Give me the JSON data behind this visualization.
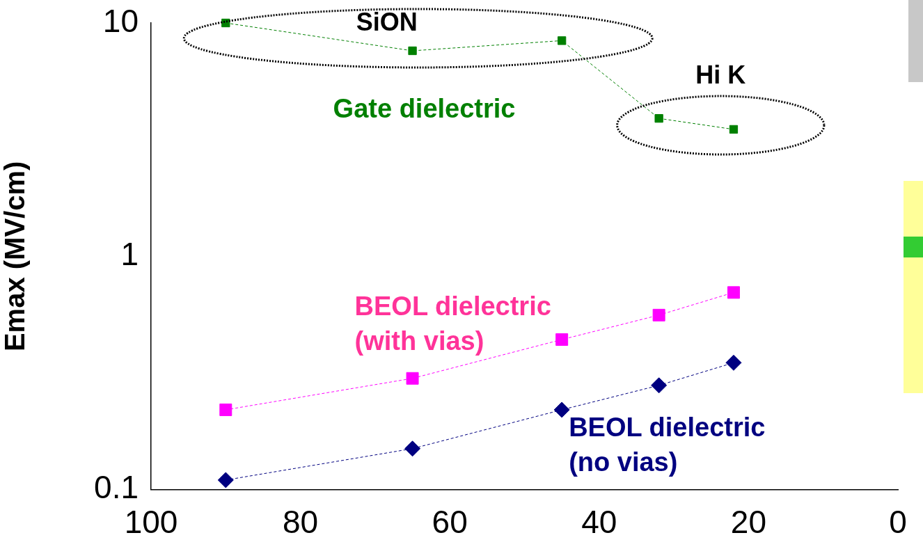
{
  "chart_data": {
    "type": "scatter",
    "ylabel": "Emax (MV/cm)",
    "log": "y",
    "xlim": [
      100,
      0
    ],
    "xticks": [
      100,
      80,
      60,
      40,
      20,
      0
    ],
    "ylim": [
      0.1,
      10
    ],
    "yticks": [
      0.1,
      1,
      10
    ],
    "grid": false,
    "legend": false,
    "line_style": "dashed",
    "x": [
      90,
      65,
      45,
      32,
      22
    ],
    "series": [
      {
        "name": "Gate dielectric",
        "type": "line",
        "color": "#008000",
        "marker": "square",
        "values": [
          10,
          7.6,
          8.4,
          3.9,
          3.5
        ]
      },
      {
        "name": "BEOL dielectric (with vias)",
        "type": "line",
        "color": "#ff00ff",
        "marker": "square",
        "values": [
          0.22,
          0.3,
          0.44,
          0.56,
          0.7
        ]
      },
      {
        "name": "BEOL dielectric (no vias)",
        "type": "line",
        "color": "#000080",
        "marker": "diamond",
        "values": [
          0.11,
          0.15,
          0.22,
          0.28,
          0.35
        ]
      }
    ],
    "annotations": [
      "SiON",
      "Hi K"
    ]
  }
}
